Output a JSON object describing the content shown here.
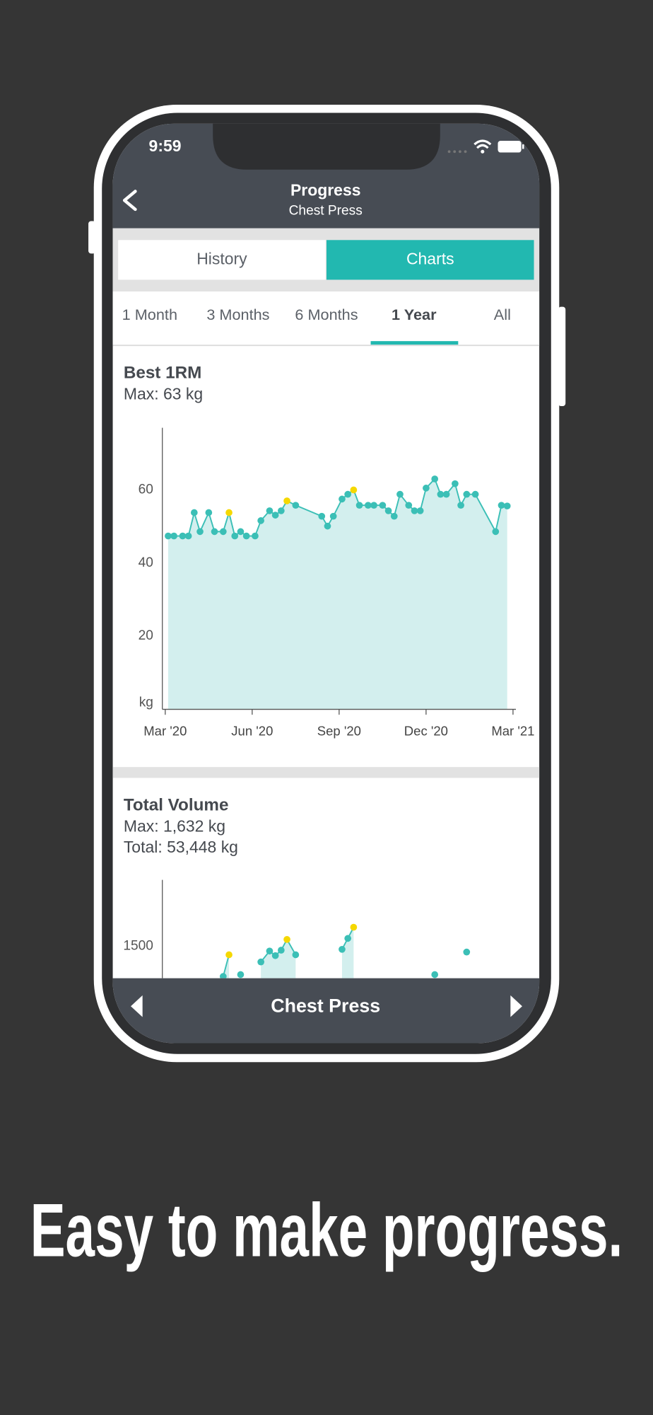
{
  "status_time": "9:59",
  "header": {
    "title": "Progress",
    "subtitle": "Chest Press"
  },
  "tabs": [
    "History",
    "Charts"
  ],
  "ranges": [
    "1 Month",
    "3 Months",
    "6 Months",
    "1 Year",
    "All"
  ],
  "charts": [
    {
      "type": "line",
      "title": "Best 1RM",
      "notes": [
        "Max: 63 kg"
      ],
      "x": [
        0.1,
        0.3,
        0.6,
        0.8,
        1.0,
        1.2,
        1.5,
        1.7,
        2.0,
        2.2,
        2.4,
        2.6,
        2.8,
        3.1,
        3.3,
        3.6,
        3.8,
        4.0,
        4.2,
        4.5,
        5.4,
        5.6,
        5.8,
        6.1,
        6.3,
        6.5,
        6.7,
        7.0,
        7.2,
        7.5,
        7.7,
        7.9,
        8.1,
        8.4,
        8.6,
        8.8,
        9.0,
        9.3,
        9.5,
        9.7,
        10.0,
        10.2,
        10.4,
        10.7,
        11.4,
        11.6,
        11.8
      ],
      "values": [
        47.4,
        47.4,
        47.4,
        47.4,
        53.8,
        48.6,
        53.8,
        48.6,
        48.6,
        53.8,
        47.4,
        48.6,
        47.4,
        47.4,
        51.6,
        54.3,
        53.1,
        54.3,
        57.0,
        55.8,
        52.8,
        50.1,
        52.8,
        57.5,
        58.8,
        60.0,
        55.8,
        55.8,
        55.8,
        55.8,
        54.3,
        52.8,
        58.8,
        55.8,
        54.3,
        54.3,
        60.5,
        63.0,
        58.8,
        58.8,
        61.7,
        55.8,
        58.8,
        58.8,
        48.6,
        55.8,
        55.6
      ],
      "highlight_indices": [
        9,
        18,
        25
      ],
      "color": "#3bbfb6",
      "area_color": "#d3efee",
      "highlight_color": "#f5d800",
      "xlim": [
        -0.1,
        12.1
      ],
      "xticks": [
        {
          "value": 0,
          "label": "Mar '20"
        },
        {
          "value": 3,
          "label": "Jun '20"
        },
        {
          "value": 6,
          "label": "Sep '20"
        },
        {
          "value": 9,
          "label": "Dec '20"
        },
        {
          "value": 12,
          "label": "Mar '21"
        }
      ],
      "ylim": [
        0,
        77
      ],
      "yticks": [
        {
          "value": 0,
          "label": "kg"
        },
        20,
        40,
        60
      ]
    },
    {
      "type": "line",
      "title": "Total Volume",
      "notes": [
        "Max: 1,632 kg",
        "Total: 53,448 kg"
      ],
      "x": [
        2.0,
        2.2,
        2.4,
        2.6,
        2.7,
        3.3,
        3.6,
        3.8,
        4.0,
        4.2,
        4.5,
        5.0,
        6.1,
        6.3,
        6.5,
        7.0,
        9.3,
        9.5,
        10.4
      ],
      "values": [
        1289,
        1440,
        null,
        1302,
        null,
        1390,
        1466,
        1434,
        1472,
        1547,
        1440,
        null,
        1478,
        1554,
        1632,
        null,
        1302,
        null,
        1459
      ],
      "highlight_indices": [
        1,
        9,
        14
      ],
      "color": "#3bbfb6",
      "area_color": "#d3efee",
      "highlight_color": "#f5d800",
      "xlim": [
        -0.1,
        12.1
      ],
      "ylim": [
        0,
        1962
      ],
      "yticks": [
        1500
      ]
    }
  ],
  "footer": {
    "title": "Chest Press"
  },
  "tagline": "Easy to make progress."
}
